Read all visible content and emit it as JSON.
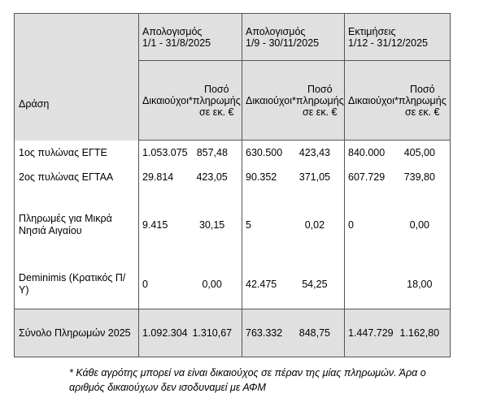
{
  "colors": {
    "header_bg": "#e0e0e0",
    "body_bg": "#ffffff",
    "total_bg": "#e0e0e0",
    "border": "#555555",
    "text": "#000000"
  },
  "table": {
    "action_header": "Δράση",
    "groups": [
      {
        "title_line1": "Απολογισμός",
        "title_line2": "1/1 - 31/8/2025"
      },
      {
        "title_line1": "Απολογισμός",
        "title_line2": "1/9 - 30/11/2025"
      },
      {
        "title_line1": "Εκτιμήσεις",
        "title_line2": "1/12 - 31/12/2025"
      }
    ],
    "subheaders": {
      "beneficiaries": "Δικαιούχοι*",
      "amount_l1": "Ποσό",
      "amount_l2": "πληρωμής",
      "amount_l3": "σε εκ. €"
    },
    "rows": [
      {
        "label": "1ος πυλώνας ΕΓΤΕ",
        "cells": [
          {
            "ben": "1.053.075",
            "amt": "857,48"
          },
          {
            "ben": "630.500",
            "amt": "423,43"
          },
          {
            "ben": "840.000",
            "amt": "405,00"
          }
        ]
      },
      {
        "label": "2ος πυλώνας ΕΓΤΑΑ",
        "cells": [
          {
            "ben": "29.814",
            "amt": "423,05"
          },
          {
            "ben": "90.352",
            "amt": "371,05"
          },
          {
            "ben": "607.729",
            "amt": "739,80"
          }
        ]
      },
      {
        "label": "Πληρωμές για Μικρά Νησιά Αιγαίου",
        "cells": [
          {
            "ben": "9.415",
            "amt": "30,15"
          },
          {
            "ben": "5",
            "amt": "0,02"
          },
          {
            "ben": "0",
            "amt": "0,00"
          }
        ]
      },
      {
        "label": "Deminimis (Κρατικός Π/Υ)",
        "cells": [
          {
            "ben": "0",
            "amt": "0,00"
          },
          {
            "ben": "42.475",
            "amt": "54,25"
          },
          {
            "ben": "",
            "amt": "18,00"
          }
        ]
      }
    ],
    "total_row": {
      "label": "Σύνολο Πληρωμών 2025",
      "cells": [
        {
          "ben": "1.092.304",
          "amt": "1.310,67"
        },
        {
          "ben": "763.332",
          "amt": "848,75"
        },
        {
          "ben": "1.447.729",
          "amt": "1.162,80"
        }
      ]
    }
  },
  "footnote": {
    "line1": "* Κάθε αγρότης μπορεί να είναι δικαιούχος σε πέραν της μίας πληρωμών. Άρα ο",
    "line2": "αριθμός δικαιούχων δεν  ισοδυναμεί με ΑΦΜ"
  }
}
